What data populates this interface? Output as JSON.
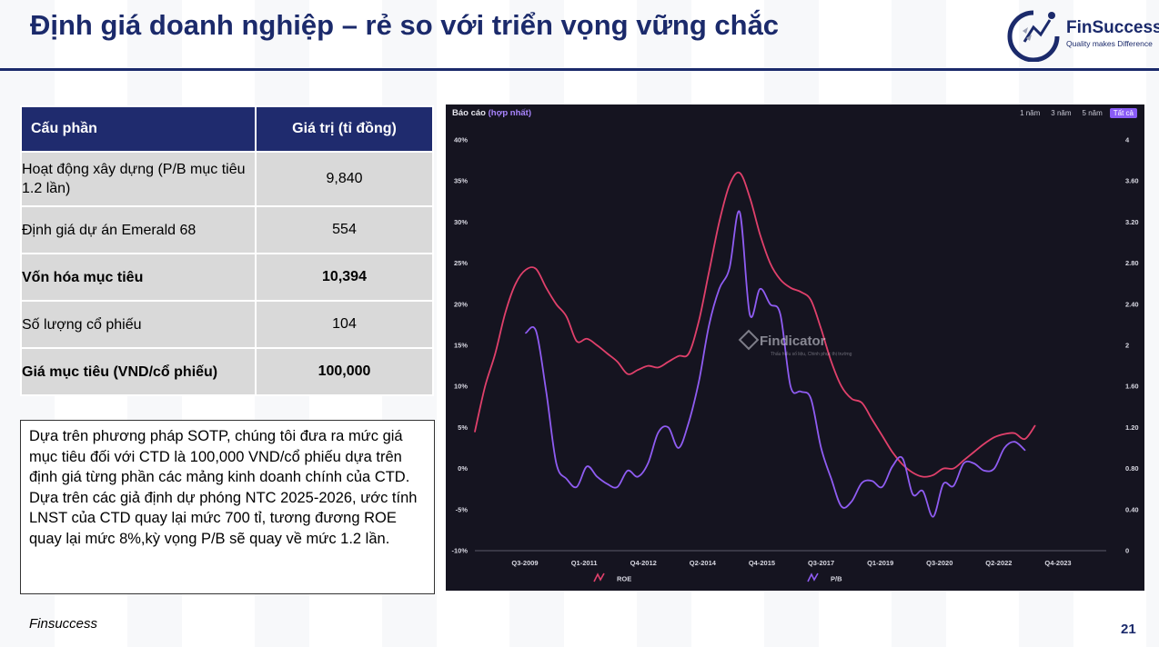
{
  "slide": {
    "title": "Định giá doanh nghiệp – rẻ so với triển vọng vững chắc",
    "logo_name": "FinSuccess",
    "logo_tagline": "Quality makes Difference",
    "footer_brand": "Finsuccess",
    "page_number": "21",
    "colors": {
      "title": "#1b2a6b",
      "table_header": "#1f2b6e",
      "table_cell": "#d9d9d9",
      "chart_bg": "#151420",
      "roe": "#e0406b",
      "pb": "#8f5cf2"
    }
  },
  "table": {
    "headers": [
      "Cấu phần",
      "Giá trị (tỉ đồng)"
    ],
    "rows": [
      {
        "label": "Hoạt động xây dựng (P/B mục tiêu 1.2 lần)",
        "value": "9,840",
        "bold": false
      },
      {
        "label": "Định giá dự án Emerald 68",
        "value": "554",
        "bold": false
      },
      {
        "label": "Vốn hóa mục tiêu",
        "value": "10,394",
        "bold": true
      },
      {
        "label": "Số lượng cổ phiếu",
        "value": "104",
        "bold": false
      },
      {
        "label": "Giá mục tiêu (VND/cổ phiếu)",
        "value": "100,000",
        "bold": true
      }
    ]
  },
  "note": {
    "para1": "Dựa trên phương pháp SOTP, chúng tôi đưa ra mức giá mục tiêu đối với CTD là 100,000 VND/cổ phiếu dựa trên định giá từng phần các mảng kinh doanh chính của CTD.",
    "para2": "Dựa trên các giả định dự phóng NTC 2025-2026, ước tính LNST của CTD quay lại mức 700 tỉ, tương đương ROE quay lại mức 8%,kỳ vọng P/B sẽ quay về mức 1.2 lần."
  },
  "chart_header": {
    "label": "Báo cáo",
    "sublabel": "(hợp nhất)",
    "ranges": [
      "1 năm",
      "3 năm",
      "5 năm",
      "Tất cả"
    ],
    "active_range": "Tất cả",
    "watermark": "Findicator",
    "watermark_sub": "Thấu hiểu số liệu, Chinh phục thị trường"
  },
  "chart_data": {
    "type": "line",
    "title": "",
    "xlabel": "",
    "ylabel": "",
    "x_ticks": [
      "Q3-2009",
      "Q1-2011",
      "Q4-2012",
      "Q2-2014",
      "Q4-2015",
      "Q3-2017",
      "Q1-2019",
      "Q3-2020",
      "Q2-2022",
      "Q4-2023"
    ],
    "y_left_ticks": [
      "40%",
      "35%",
      "30%",
      "25%",
      "20%",
      "15%",
      "10%",
      "5%",
      "0%",
      "-5%",
      "-10%"
    ],
    "y_right_ticks": [
      "4",
      "3.60",
      "3.20",
      "2.80",
      "2.40",
      "2",
      "1.60",
      "1.20",
      "0.80",
      "0.40",
      "0"
    ],
    "ylim_left": [
      -10,
      40
    ],
    "ylim_right": [
      0,
      4
    ],
    "x_index_range": [
      0,
      62
    ],
    "grid": false,
    "legend_position": "bottom",
    "series": [
      {
        "name": "ROE",
        "axis": "left",
        "color": "#e0406b",
        "points": [
          [
            0,
            4.5
          ],
          [
            1,
            10
          ],
          [
            2,
            14
          ],
          [
            3,
            19
          ],
          [
            4,
            22.5
          ],
          [
            5,
            24.2
          ],
          [
            6,
            24.3
          ],
          [
            7,
            22
          ],
          [
            8,
            20
          ],
          [
            9,
            18.5
          ],
          [
            10,
            15.5
          ],
          [
            11,
            15.8
          ],
          [
            12,
            15
          ],
          [
            13,
            14
          ],
          [
            14,
            13
          ],
          [
            15,
            11.5
          ],
          [
            16,
            12
          ],
          [
            17,
            12.5
          ],
          [
            18,
            12.3
          ],
          [
            19,
            13
          ],
          [
            20,
            13.7
          ],
          [
            21,
            14
          ],
          [
            22,
            18
          ],
          [
            23,
            24
          ],
          [
            24,
            30
          ],
          [
            25,
            34.5
          ],
          [
            26,
            36
          ],
          [
            27,
            33
          ],
          [
            28,
            28.5
          ],
          [
            29,
            25
          ],
          [
            30,
            23
          ],
          [
            31,
            22
          ],
          [
            32,
            21.5
          ],
          [
            33,
            20.5
          ],
          [
            34,
            17
          ],
          [
            35,
            13
          ],
          [
            36,
            10
          ],
          [
            37,
            8.5
          ],
          [
            38,
            8
          ],
          [
            39,
            6
          ],
          [
            40,
            4
          ],
          [
            41,
            2
          ],
          [
            42,
            0.5
          ],
          [
            43,
            -0.5
          ],
          [
            44,
            -1
          ],
          [
            45,
            -0.8
          ],
          [
            46,
            0
          ],
          [
            47,
            0
          ],
          [
            48,
            1
          ],
          [
            49,
            2
          ],
          [
            50,
            3
          ],
          [
            51,
            3.8
          ],
          [
            52,
            4.2
          ],
          [
            53,
            4.3
          ],
          [
            54,
            3.6
          ],
          [
            55,
            5.2
          ]
        ]
      },
      {
        "name": "P/B",
        "axis": "right",
        "color": "#8f5cf2",
        "points": [
          [
            5,
            2.12
          ],
          [
            6,
            2.14
          ],
          [
            7,
            1.55
          ],
          [
            8,
            0.85
          ],
          [
            9,
            0.7
          ],
          [
            10,
            0.62
          ],
          [
            11,
            0.82
          ],
          [
            12,
            0.72
          ],
          [
            13,
            0.65
          ],
          [
            14,
            0.62
          ],
          [
            15,
            0.78
          ],
          [
            16,
            0.72
          ],
          [
            17,
            0.85
          ],
          [
            18,
            1.15
          ],
          [
            19,
            1.2
          ],
          [
            20,
            1.0
          ],
          [
            21,
            1.25
          ],
          [
            22,
            1.65
          ],
          [
            23,
            2.2
          ],
          [
            24,
            2.55
          ],
          [
            25,
            2.75
          ],
          [
            26,
            3.3
          ],
          [
            27,
            2.3
          ],
          [
            28,
            2.55
          ],
          [
            29,
            2.4
          ],
          [
            30,
            2.3
          ],
          [
            31,
            1.6
          ],
          [
            32,
            1.55
          ],
          [
            33,
            1.48
          ],
          [
            34,
            1.0
          ],
          [
            35,
            0.7
          ],
          [
            36,
            0.43
          ],
          [
            37,
            0.48
          ],
          [
            38,
            0.66
          ],
          [
            39,
            0.68
          ],
          [
            40,
            0.62
          ],
          [
            41,
            0.82
          ],
          [
            42,
            0.9
          ],
          [
            43,
            0.55
          ],
          [
            44,
            0.58
          ],
          [
            45,
            0.33
          ],
          [
            46,
            0.65
          ],
          [
            47,
            0.63
          ],
          [
            48,
            0.85
          ],
          [
            49,
            0.85
          ],
          [
            50,
            0.78
          ],
          [
            51,
            0.8
          ],
          [
            52,
            1.0
          ],
          [
            53,
            1.06
          ],
          [
            54,
            0.98
          ]
        ]
      }
    ]
  }
}
